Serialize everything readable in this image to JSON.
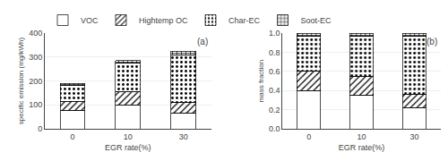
{
  "chart_data": [
    {
      "type": "bar",
      "stacked": true,
      "categories": [
        "0",
        "10",
        "30"
      ],
      "xlabel": "EGR rate(%)",
      "ylabel": "specific emission (mg/kWh)",
      "annotations": [
        "(a)"
      ],
      "series": [
        {
          "name": "VOC",
          "color": "#ffffff",
          "values": [
            75,
            100,
            65
          ]
        },
        {
          "name": "Hightemp OC",
          "color": "#ffffff",
          "values": [
            40,
            55,
            45
          ]
        },
        {
          "name": "Char-EC",
          "color": "#b0b0b0",
          "values": [
            65,
            120,
            200
          ]
        },
        {
          "name": "Soot-EC",
          "color": "#d8d8d8",
          "values": [
            10,
            10,
            15
          ]
        }
      ],
      "ylim": [
        0,
        400
      ],
      "yticks": [
        0,
        100,
        200,
        300,
        400
      ],
      "legend": "upper left"
    },
    {
      "type": "bar",
      "stacked": true,
      "categories": [
        "0",
        "10",
        "30"
      ],
      "xlabel": "EGR rate(%)",
      "ylabel": "mass fraction",
      "annotations": [
        "(b)"
      ],
      "series": [
        {
          "name": "VOC",
          "color": "#ffffff",
          "values": [
            0.4,
            0.35,
            0.22
          ]
        },
        {
          "name": "Hightemp OC",
          "color": "#ffffff",
          "values": [
            0.2,
            0.2,
            0.14
          ]
        },
        {
          "name": "Char-EC",
          "color": "#b0b0b0",
          "values": [
            0.37,
            0.42,
            0.61
          ]
        },
        {
          "name": "Soot-EC",
          "color": "#d8d8d8",
          "values": [
            0.03,
            0.03,
            0.03
          ]
        }
      ],
      "ylim": [
        0.0,
        1.0
      ],
      "yticks": [
        {
          "value": 0.0,
          "label": "0.0"
        },
        0.2,
        0.4,
        0.6,
        0.8,
        {
          "value": 1.0,
          "label": "1.0"
        }
      ]
    }
  ]
}
